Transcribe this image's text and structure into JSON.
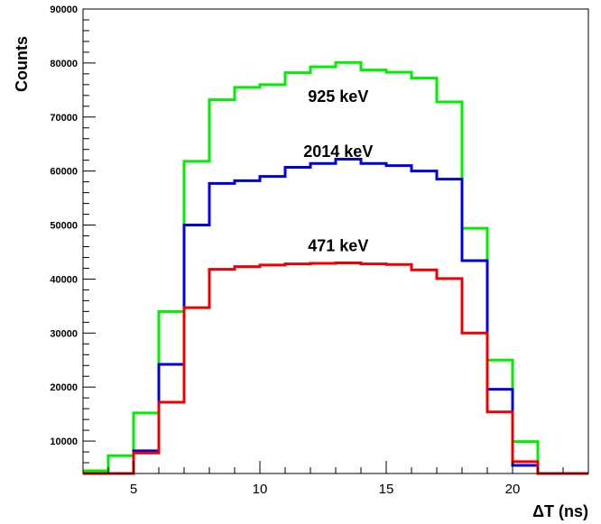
{
  "chart_data": {
    "type": "line",
    "style": "step-histogram",
    "xlabel": "ΔT (ns)",
    "ylabel": "Counts",
    "xlim": [
      3,
      23
    ],
    "ylim": [
      4000,
      90000
    ],
    "x_ticks": [
      5,
      10,
      15,
      20
    ],
    "y_ticks": [
      10000,
      20000,
      30000,
      40000,
      50000,
      60000,
      70000,
      80000,
      90000
    ],
    "grid": false,
    "bin_edges": [
      3,
      4,
      5,
      6,
      7,
      8,
      9,
      10,
      11,
      12,
      13,
      14,
      15,
      16,
      17,
      18,
      19,
      20,
      21,
      22,
      23
    ],
    "series": [
      {
        "color": "#00ee00",
        "values": [
          4500,
          7300,
          15200,
          34000,
          61800,
          73200,
          75500,
          76000,
          78200,
          79300,
          80100,
          78700,
          78300,
          77200,
          72800,
          49400,
          25000,
          9900,
          3600,
          3500
        ]
      },
      {
        "color": "#0000dd",
        "values": [
          3500,
          3900,
          8200,
          24200,
          50000,
          57700,
          58200,
          59000,
          60700,
          61400,
          62200,
          61400,
          61000,
          60000,
          58500,
          43400,
          19600,
          5500,
          3600,
          3500
        ]
      },
      {
        "color": "#ee0000",
        "values": [
          3500,
          3700,
          7800,
          17200,
          34700,
          41800,
          42300,
          42600,
          42800,
          42900,
          43000,
          42800,
          42700,
          41700,
          40100,
          30000,
          15400,
          6200,
          3600,
          3500
        ]
      }
    ],
    "annotations": [
      {
        "text": "925 keV",
        "x": 13.1,
        "y": 72800
      },
      {
        "text": "2014 keV",
        "x": 13.1,
        "y": 62600
      },
      {
        "text": "471 keV",
        "x": 13.1,
        "y": 45200
      }
    ]
  }
}
